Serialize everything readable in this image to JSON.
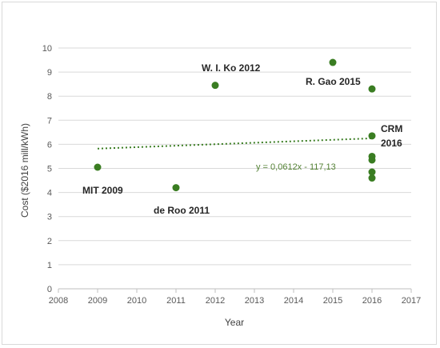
{
  "chart_data": {
    "type": "scatter",
    "xlabel": "Year",
    "ylabel": "Cost ($2016 mill/kWh)",
    "xlim": [
      2008,
      2017
    ],
    "ylim": [
      0,
      10
    ],
    "x_ticks": [
      "2008",
      "2009",
      "2010",
      "2011",
      "2012",
      "2013",
      "2014",
      "2015",
      "2016",
      "2017"
    ],
    "y_ticks": [
      "0",
      "1",
      "2",
      "3",
      "4",
      "5",
      "6",
      "7",
      "8",
      "9",
      "10"
    ],
    "grid": "horizontal",
    "marker_color": "#3a7d22",
    "points": [
      {
        "x": 2009,
        "y": 5.05
      },
      {
        "x": 2011,
        "y": 4.2
      },
      {
        "x": 2012,
        "y": 8.45
      },
      {
        "x": 2015,
        "y": 9.4
      },
      {
        "x": 2016,
        "y": 8.3
      },
      {
        "x": 2016,
        "y": 6.35
      },
      {
        "x": 2016,
        "y": 5.5
      },
      {
        "x": 2016,
        "y": 5.35
      },
      {
        "x": 2016,
        "y": 4.85
      },
      {
        "x": 2016,
        "y": 4.6
      }
    ],
    "trendline": {
      "equation": "y = 0,0612x - 117,13",
      "slope": 0.0612,
      "intercept": -117.13,
      "x_range": [
        2009,
        2016
      ],
      "color": "#3a7d22",
      "style": "dotted"
    },
    "annotations": [
      {
        "text": "MIT 2009"
      },
      {
        "text": "de Roo 2011"
      },
      {
        "text": "W. I. Ko 2012"
      },
      {
        "text": "R. Gao 2015"
      },
      {
        "text": "CRM"
      },
      {
        "text": "2016"
      }
    ]
  }
}
